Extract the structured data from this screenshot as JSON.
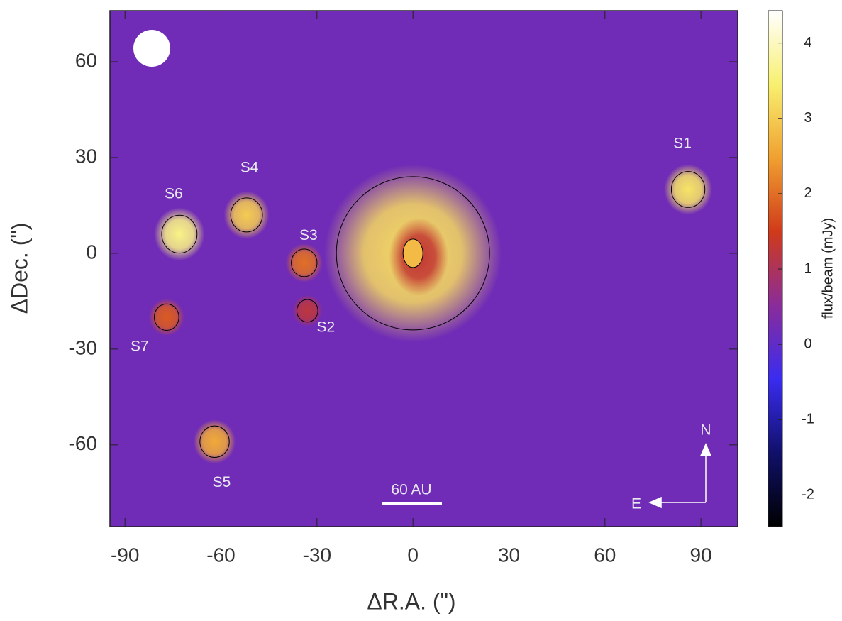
{
  "chart_data": {
    "type": "image",
    "x_label": "ΔR.A. (\")",
    "y_label": "ΔDec. (\")",
    "colorbar_label": "flux/beam (mJy)",
    "xlim": [
      -94.7,
      101.5
    ],
    "ylim": [
      -85.6,
      76
    ],
    "xticks": [
      -90,
      -60,
      -30,
      0,
      30,
      60,
      90
    ],
    "yticks": [
      60,
      30,
      0,
      -30,
      -60
    ],
    "clim": [
      -2.42,
      4.43
    ],
    "cticks": [
      4,
      3,
      2,
      1,
      0,
      -1,
      -2
    ],
    "colors": [
      "#000000",
      "#10106a",
      "#3a2cf0",
      "#8a2c9a",
      "#d03a1a",
      "#f0a030",
      "#f8f070",
      "#ffffff"
    ],
    "background_level": 0.2,
    "disk": {
      "x": 0,
      "y": 0,
      "peak": 3.2,
      "hole": 1.3,
      "center": 2.8
    },
    "sources": [
      {
        "name": "S1",
        "x": 86,
        "y": 20,
        "peak": 3.3
      },
      {
        "name": "S2",
        "x": -33,
        "y": -18,
        "peak": 1.2
      },
      {
        "name": "S3",
        "x": -34,
        "y": -3,
        "peak": 2.0
      },
      {
        "name": "S4",
        "x": -52,
        "y": 12,
        "peak": 3.0
      },
      {
        "name": "S5",
        "x": -62,
        "y": -59,
        "peak": 2.6
      },
      {
        "name": "S6",
        "x": -73,
        "y": 6,
        "peak": 3.6
      },
      {
        "name": "S7",
        "x": -77,
        "y": -20,
        "peak": 1.8
      }
    ],
    "scale_bar": "60 AU",
    "north": "N",
    "east": "E"
  }
}
